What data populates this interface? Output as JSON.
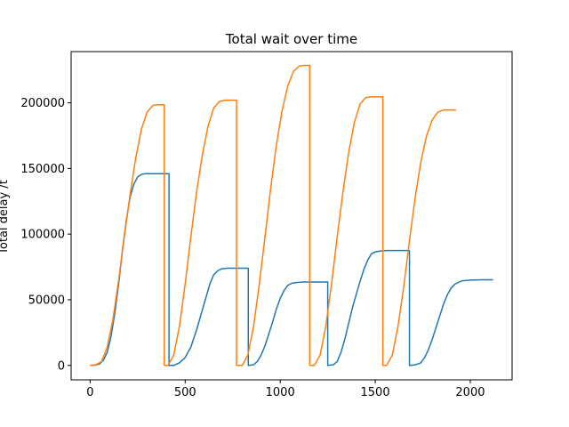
{
  "chart_data": {
    "type": "line",
    "title": "Total wait over time",
    "xlabel": "",
    "ylabel": "Total delay /t",
    "xlim": [
      -100,
      2220
    ],
    "ylim": [
      -11000,
      239000
    ],
    "xticks": [
      0,
      500,
      1000,
      1500,
      2000
    ],
    "yticks": [
      0,
      50000,
      100000,
      150000,
      200000
    ],
    "grid": false,
    "legend": "none",
    "series": [
      {
        "color": "#1f77b4",
        "points": [
          [
            0,
            0
          ],
          [
            30,
            300
          ],
          [
            50,
            1200
          ],
          [
            70,
            4000
          ],
          [
            90,
            10000
          ],
          [
            110,
            22000
          ],
          [
            130,
            40000
          ],
          [
            150,
            62000
          ],
          [
            170,
            88000
          ],
          [
            190,
            110000
          ],
          [
            210,
            128000
          ],
          [
            230,
            138000
          ],
          [
            250,
            143500
          ],
          [
            270,
            145500
          ],
          [
            290,
            146000
          ],
          [
            330,
            146000
          ],
          [
            360,
            146000
          ],
          [
            395,
            146000
          ],
          [
            415,
            146000
          ],
          [
            415,
            0
          ],
          [
            440,
            0
          ],
          [
            470,
            2000
          ],
          [
            500,
            6000
          ],
          [
            530,
            14000
          ],
          [
            560,
            27000
          ],
          [
            590,
            42000
          ],
          [
            610,
            52000
          ],
          [
            630,
            62000
          ],
          [
            650,
            69000
          ],
          [
            670,
            72000
          ],
          [
            690,
            73500
          ],
          [
            720,
            74000
          ],
          [
            760,
            74000
          ],
          [
            800,
            74000
          ],
          [
            832,
            74000
          ],
          [
            832,
            0
          ],
          [
            860,
            500
          ],
          [
            880,
            3000
          ],
          [
            900,
            8000
          ],
          [
            920,
            15000
          ],
          [
            940,
            24000
          ],
          [
            960,
            33000
          ],
          [
            980,
            43000
          ],
          [
            1000,
            51000
          ],
          [
            1020,
            57000
          ],
          [
            1040,
            61000
          ],
          [
            1060,
            62500
          ],
          [
            1080,
            63000
          ],
          [
            1120,
            63500
          ],
          [
            1200,
            63500
          ],
          [
            1250,
            63500
          ],
          [
            1250,
            0
          ],
          [
            1280,
            500
          ],
          [
            1300,
            3000
          ],
          [
            1320,
            10000
          ],
          [
            1340,
            20000
          ],
          [
            1360,
            32000
          ],
          [
            1380,
            44000
          ],
          [
            1400,
            54000
          ],
          [
            1420,
            64000
          ],
          [
            1440,
            73000
          ],
          [
            1460,
            80000
          ],
          [
            1480,
            85000
          ],
          [
            1500,
            86500
          ],
          [
            1520,
            87000
          ],
          [
            1560,
            87500
          ],
          [
            1620,
            87500
          ],
          [
            1680,
            87500
          ],
          [
            1680,
            0
          ],
          [
            1710,
            400
          ],
          [
            1740,
            2000
          ],
          [
            1760,
            6000
          ],
          [
            1780,
            12000
          ],
          [
            1800,
            20000
          ],
          [
            1820,
            29000
          ],
          [
            1840,
            38000
          ],
          [
            1860,
            47000
          ],
          [
            1880,
            54000
          ],
          [
            1900,
            59000
          ],
          [
            1920,
            62000
          ],
          [
            1940,
            63500
          ],
          [
            1960,
            64500
          ],
          [
            2000,
            65000
          ],
          [
            2060,
            65200
          ],
          [
            2120,
            65200
          ]
        ]
      },
      {
        "color": "#ff7f0e",
        "points": [
          [
            0,
            0
          ],
          [
            30,
            500
          ],
          [
            60,
            3000
          ],
          [
            90,
            14000
          ],
          [
            120,
            35000
          ],
          [
            150,
            65000
          ],
          [
            180,
            98000
          ],
          [
            210,
            130000
          ],
          [
            240,
            158000
          ],
          [
            270,
            180000
          ],
          [
            300,
            193000
          ],
          [
            330,
            198000
          ],
          [
            350,
            198500
          ],
          [
            380,
            198500
          ],
          [
            390,
            198500
          ],
          [
            390,
            0
          ],
          [
            410,
            0
          ],
          [
            440,
            8000
          ],
          [
            470,
            30000
          ],
          [
            500,
            62000
          ],
          [
            530,
            98000
          ],
          [
            560,
            132000
          ],
          [
            590,
            160000
          ],
          [
            620,
            182000
          ],
          [
            650,
            196000
          ],
          [
            680,
            201000
          ],
          [
            710,
            202000
          ],
          [
            740,
            202000
          ],
          [
            770,
            202000
          ],
          [
            770,
            0
          ],
          [
            800,
            0
          ],
          [
            830,
            8000
          ],
          [
            860,
            30000
          ],
          [
            890,
            62000
          ],
          [
            920,
            98000
          ],
          [
            950,
            135000
          ],
          [
            980,
            168000
          ],
          [
            1010,
            194000
          ],
          [
            1040,
            213000
          ],
          [
            1070,
            224000
          ],
          [
            1100,
            228000
          ],
          [
            1130,
            228500
          ],
          [
            1155,
            228500
          ],
          [
            1155,
            0
          ],
          [
            1180,
            0
          ],
          [
            1210,
            8000
          ],
          [
            1240,
            30000
          ],
          [
            1270,
            62000
          ],
          [
            1300,
            98000
          ],
          [
            1330,
            132000
          ],
          [
            1360,
            162000
          ],
          [
            1390,
            185000
          ],
          [
            1420,
            199000
          ],
          [
            1450,
            204000
          ],
          [
            1480,
            204500
          ],
          [
            1510,
            204500
          ],
          [
            1540,
            204500
          ],
          [
            1540,
            0
          ],
          [
            1560,
            0
          ],
          [
            1590,
            8000
          ],
          [
            1620,
            30000
          ],
          [
            1650,
            60000
          ],
          [
            1680,
            95000
          ],
          [
            1710,
            128000
          ],
          [
            1740,
            155000
          ],
          [
            1770,
            175000
          ],
          [
            1800,
            187000
          ],
          [
            1830,
            193000
          ],
          [
            1860,
            194500
          ],
          [
            1900,
            194500
          ],
          [
            1925,
            194500
          ]
        ]
      }
    ]
  }
}
